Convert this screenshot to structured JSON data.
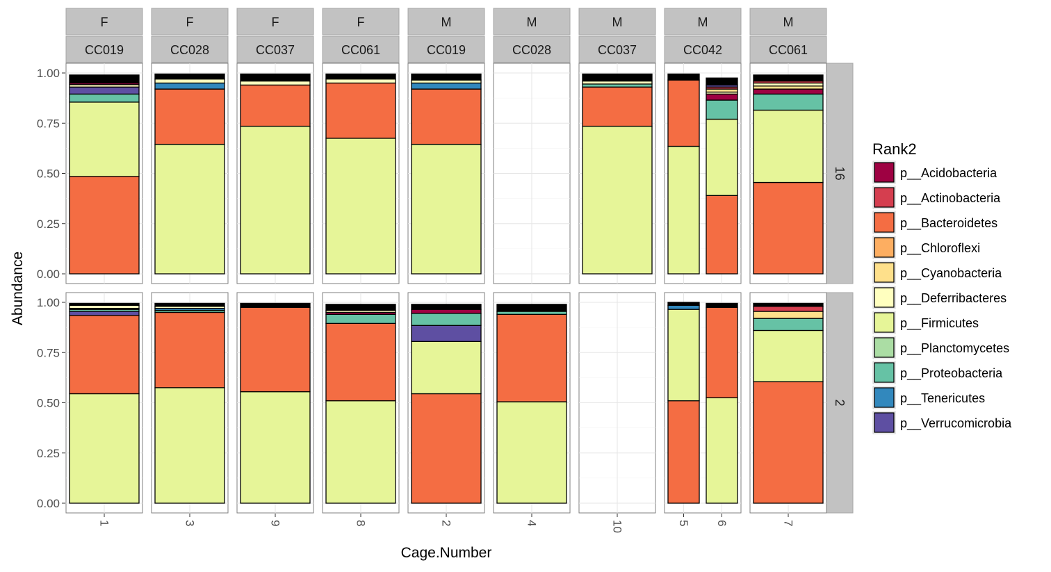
{
  "chart_data": {
    "type": "bar",
    "stacked": true,
    "xlabel": "Cage.Number",
    "ylabel": "Abundance",
    "ylim": [
      0,
      1.0
    ],
    "yticks": [
      "0.00",
      "0.25",
      "0.50",
      "0.75",
      "1.00"
    ],
    "grid": true,
    "legend_position": "right",
    "legend": {
      "title": "Rank2",
      "items": [
        {
          "name": "p__Acidobacteria",
          "color": "#9E0142"
        },
        {
          "name": "p__Actinobacteria",
          "color": "#D53E4F"
        },
        {
          "name": "p__Bacteroidetes",
          "color": "#F46D43"
        },
        {
          "name": "p__Chloroflexi",
          "color": "#FDAE61"
        },
        {
          "name": "p__Cyanobacteria",
          "color": "#FEE08B"
        },
        {
          "name": "p__Deferribacteres",
          "color": "#FFFFBF"
        },
        {
          "name": "p__Firmicutes",
          "color": "#E6F598"
        },
        {
          "name": "p__Planctomycetes",
          "color": "#ABDDA4"
        },
        {
          "name": "p__Proteobacteria",
          "color": "#66C2A5"
        },
        {
          "name": "p__Tenericutes",
          "color": "#3288BD"
        },
        {
          "name": "p__Verrucomicrobia",
          "color": "#5E4FA2"
        }
      ]
    },
    "other_color": "#000000",
    "row_strips": [
      "16",
      "2"
    ],
    "columns": [
      {
        "strip_top": "F",
        "strip_bottom": "CC019",
        "cages": [
          "1"
        ]
      },
      {
        "strip_top": "F",
        "strip_bottom": "CC028",
        "cages": [
          "3"
        ]
      },
      {
        "strip_top": "F",
        "strip_bottom": "CC037",
        "cages": [
          "9"
        ]
      },
      {
        "strip_top": "F",
        "strip_bottom": "CC061",
        "cages": [
          "8"
        ]
      },
      {
        "strip_top": "M",
        "strip_bottom": "CC019",
        "cages": [
          "2"
        ]
      },
      {
        "strip_top": "M",
        "strip_bottom": "CC028",
        "cages": [
          "4"
        ]
      },
      {
        "strip_top": "M",
        "strip_bottom": "CC037",
        "cages": [
          "10"
        ]
      },
      {
        "strip_top": "M",
        "strip_bottom": "CC042",
        "cages": [
          "5",
          "6"
        ]
      },
      {
        "strip_top": "M",
        "strip_bottom": "CC061",
        "cages": [
          "7"
        ]
      }
    ],
    "panels": [
      [
        [
          {
            "taxon": "p__Bacteroidetes",
            "value": 0.485
          },
          {
            "taxon": "p__Firmicutes",
            "value": 0.37
          },
          {
            "taxon": "p__Proteobacteria",
            "value": 0.04
          },
          {
            "taxon": "p__Verrucomicrobia",
            "value": 0.035
          },
          {
            "taxon": "p__Deferribacteres",
            "value": 0.012
          },
          {
            "taxon": "p__Acidobacteria",
            "value": 0.008
          },
          {
            "taxon": "other",
            "value": 0.04
          }
        ],
        [
          {
            "taxon": "p__Firmicutes",
            "value": 0.645
          },
          {
            "taxon": "p__Bacteroidetes",
            "value": 0.275
          },
          {
            "taxon": "p__Tenericutes",
            "value": 0.03
          },
          {
            "taxon": "p__Deferribacteres",
            "value": 0.02
          },
          {
            "taxon": "other",
            "value": 0.025
          }
        ],
        [
          {
            "taxon": "p__Firmicutes",
            "value": 0.735
          },
          {
            "taxon": "p__Bacteroidetes",
            "value": 0.205
          },
          {
            "taxon": "p__Deferribacteres",
            "value": 0.02
          },
          {
            "taxon": "other",
            "value": 0.035
          }
        ],
        [
          {
            "taxon": "p__Firmicutes",
            "value": 0.675
          },
          {
            "taxon": "p__Bacteroidetes",
            "value": 0.275
          },
          {
            "taxon": "p__Deferribacteres",
            "value": 0.02
          },
          {
            "taxon": "other",
            "value": 0.025
          }
        ],
        [
          {
            "taxon": "p__Firmicutes",
            "value": 0.645
          },
          {
            "taxon": "p__Bacteroidetes",
            "value": 0.275
          },
          {
            "taxon": "p__Tenericutes",
            "value": 0.03
          },
          {
            "taxon": "p__Deferribacteres",
            "value": 0.015
          },
          {
            "taxon": "other",
            "value": 0.03
          }
        ],
        [],
        [
          {
            "taxon": "p__Firmicutes",
            "value": 0.735
          },
          {
            "taxon": "p__Bacteroidetes",
            "value": 0.195
          },
          {
            "taxon": "p__Proteobacteria",
            "value": 0.015
          },
          {
            "taxon": "p__Deferribacteres",
            "value": 0.015
          },
          {
            "taxon": "other",
            "value": 0.035
          }
        ],
        [
          [
            {
              "taxon": "p__Firmicutes",
              "value": 0.635
            },
            {
              "taxon": "p__Bacteroidetes",
              "value": 0.33
            },
            {
              "taxon": "other",
              "value": 0.03
            }
          ],
          [
            {
              "taxon": "p__Bacteroidetes",
              "value": 0.39
            },
            {
              "taxon": "p__Firmicutes",
              "value": 0.38
            },
            {
              "taxon": "p__Proteobacteria",
              "value": 0.095
            },
            {
              "taxon": "p__Acidobacteria",
              "value": 0.03
            },
            {
              "taxon": "p__Deferribacteres",
              "value": 0.01
            },
            {
              "taxon": "p__Cyanobacteria",
              "value": 0.015
            },
            {
              "taxon": "p__Actinobacteria",
              "value": 0.01
            },
            {
              "taxon": "p__Verrucomicrobia",
              "value": 0.01
            },
            {
              "taxon": "other",
              "value": 0.035
            }
          ]
        ],
        [
          {
            "taxon": "p__Bacteroidetes",
            "value": 0.455
          },
          {
            "taxon": "p__Firmicutes",
            "value": 0.36
          },
          {
            "taxon": "p__Proteobacteria",
            "value": 0.08
          },
          {
            "taxon": "p__Acidobacteria",
            "value": 0.025
          },
          {
            "taxon": "p__Cyanobacteria",
            "value": 0.015
          },
          {
            "taxon": "p__Deferribacteres",
            "value": 0.015
          },
          {
            "taxon": "p__Actinobacteria",
            "value": 0.01
          },
          {
            "taxon": "other",
            "value": 0.03
          }
        ]
      ],
      [
        [
          {
            "taxon": "p__Firmicutes",
            "value": 0.545
          },
          {
            "taxon": "p__Bacteroidetes",
            "value": 0.39
          },
          {
            "taxon": "p__Verrucomicrobia",
            "value": 0.02
          },
          {
            "taxon": "p__Proteobacteria",
            "value": 0.01
          },
          {
            "taxon": "p__Planctomycetes",
            "value": 0.005
          },
          {
            "taxon": "p__Deferribacteres",
            "value": 0.015
          },
          {
            "taxon": "other",
            "value": 0.01
          }
        ],
        [
          {
            "taxon": "p__Firmicutes",
            "value": 0.575
          },
          {
            "taxon": "p__Bacteroidetes",
            "value": 0.375
          },
          {
            "taxon": "p__Proteobacteria",
            "value": 0.01
          },
          {
            "taxon": "p__Tenericutes",
            "value": 0.01
          },
          {
            "taxon": "p__Deferribacteres",
            "value": 0.01
          },
          {
            "taxon": "other",
            "value": 0.015
          }
        ],
        [
          {
            "taxon": "p__Firmicutes",
            "value": 0.555
          },
          {
            "taxon": "p__Bacteroidetes",
            "value": 0.42
          },
          {
            "taxon": "other",
            "value": 0.02
          }
        ],
        [
          {
            "taxon": "p__Firmicutes",
            "value": 0.51
          },
          {
            "taxon": "p__Bacteroidetes",
            "value": 0.385
          },
          {
            "taxon": "p__Proteobacteria",
            "value": 0.045
          },
          {
            "taxon": "p__Acidobacteria",
            "value": 0.01
          },
          {
            "taxon": "p__Deferribacteres",
            "value": 0.01
          },
          {
            "taxon": "other",
            "value": 0.03
          }
        ],
        [
          {
            "taxon": "p__Bacteroidetes",
            "value": 0.545
          },
          {
            "taxon": "p__Firmicutes",
            "value": 0.26
          },
          {
            "taxon": "p__Verrucomicrobia",
            "value": 0.08
          },
          {
            "taxon": "p__Proteobacteria",
            "value": 0.06
          },
          {
            "taxon": "p__Acidobacteria",
            "value": 0.02
          },
          {
            "taxon": "other",
            "value": 0.025
          }
        ],
        [
          {
            "taxon": "p__Firmicutes",
            "value": 0.505
          },
          {
            "taxon": "p__Bacteroidetes",
            "value": 0.435
          },
          {
            "taxon": "p__Proteobacteria",
            "value": 0.015
          },
          {
            "taxon": "other",
            "value": 0.035
          }
        ],
        [],
        [
          [
            {
              "taxon": "p__Bacteroidetes",
              "value": 0.51
            },
            {
              "taxon": "p__Firmicutes",
              "value": 0.455
            },
            {
              "taxon": "p__Tenericutes",
              "value": 0.02
            },
            {
              "taxon": "other",
              "value": 0.015
            }
          ],
          [
            {
              "taxon": "p__Firmicutes",
              "value": 0.525
            },
            {
              "taxon": "p__Bacteroidetes",
              "value": 0.45
            },
            {
              "taxon": "other",
              "value": 0.02
            }
          ]
        ],
        [
          {
            "taxon": "p__Bacteroidetes",
            "value": 0.605
          },
          {
            "taxon": "p__Firmicutes",
            "value": 0.255
          },
          {
            "taxon": "p__Proteobacteria",
            "value": 0.06
          },
          {
            "taxon": "p__Cyanobacteria",
            "value": 0.035
          },
          {
            "taxon": "p__Actinobacteria",
            "value": 0.025
          },
          {
            "taxon": "other",
            "value": 0.015
          }
        ]
      ]
    ]
  }
}
